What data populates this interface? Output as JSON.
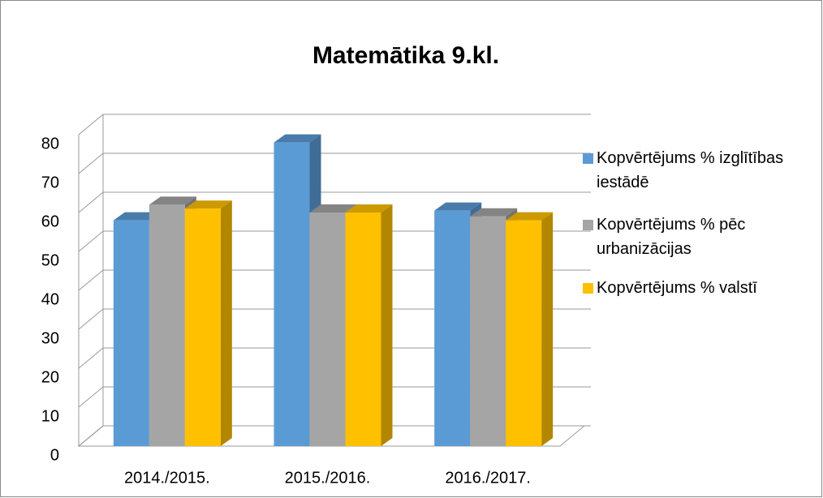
{
  "chart_data": {
    "type": "bar3d",
    "title": "Matemātika 9.kl.",
    "categories": [
      "2014./2015.",
      "2015./2016.",
      "2016./2017."
    ],
    "series": [
      {
        "name": "Kopvērtējums % izglītības iestādē",
        "color": "#5b9bd5",
        "values": [
          58,
          78,
          60.5
        ]
      },
      {
        "name": "Kopvērtējums % pēc urbanizācijas",
        "color": "#a5a5a5",
        "values": [
          62,
          60,
          59
        ]
      },
      {
        "name": "Kopvērtējums % valstī",
        "color": "#ffc000",
        "values": [
          61,
          60,
          58
        ]
      }
    ],
    "ylim": [
      0,
      80
    ],
    "yticks": [
      0,
      10,
      20,
      30,
      40,
      50,
      60,
      70,
      80
    ],
    "grid": true,
    "legend": "right"
  }
}
